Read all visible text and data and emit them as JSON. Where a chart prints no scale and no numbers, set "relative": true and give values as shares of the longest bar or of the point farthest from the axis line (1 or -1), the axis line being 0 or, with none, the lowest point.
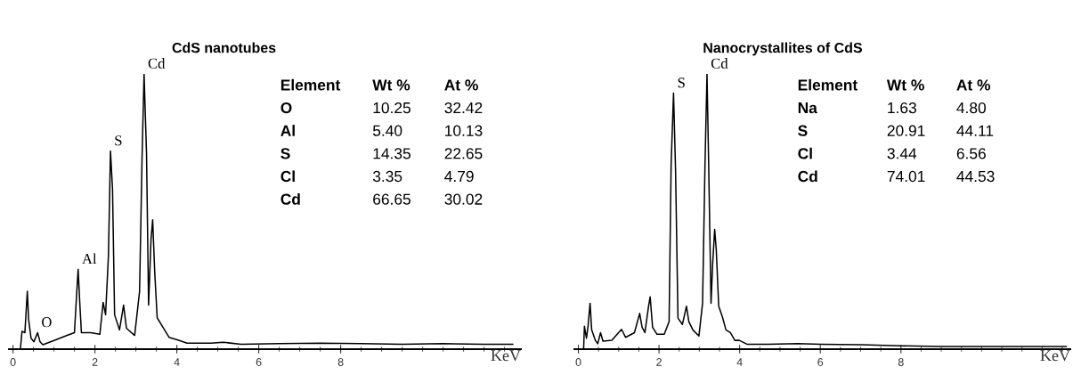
{
  "chart_data": [
    {
      "type": "line",
      "title": "CdS nanotubes",
      "xlabel": "KeV",
      "relative": true,
      "xlim": [
        -0.1,
        12.4
      ],
      "xticks": [
        0,
        2,
        4,
        6,
        8
      ],
      "grid": false,
      "legend": false,
      "series": [
        {
          "color": "#000000",
          "x": [
            0.18,
            0.22,
            0.29,
            0.35,
            0.38,
            0.44,
            0.51,
            0.6,
            0.66,
            0.73,
            1.03,
            1.32,
            1.5,
            1.55,
            1.59,
            1.63,
            1.67,
            1.9,
            2.12,
            2.2,
            2.26,
            2.33,
            2.38,
            2.43,
            2.48,
            2.6,
            2.7,
            2.77,
            2.97,
            3.09,
            3.15,
            3.2,
            3.26,
            3.31,
            3.37,
            3.41,
            3.46,
            3.52,
            3.66,
            3.81,
            4.03,
            4.25,
            4.84,
            5.13,
            5.57,
            6.5,
            7.5,
            8.5,
            9.5,
            10.5,
            11.5,
            12.2
          ],
          "values": [
            0,
            0.065,
            0.06,
            0.21,
            0.11,
            0.04,
            0.027,
            0.06,
            0.027,
            0.016,
            0.033,
            0.05,
            0.06,
            0.19,
            0.29,
            0.17,
            0.06,
            0.06,
            0.054,
            0.17,
            0.125,
            0.34,
            0.72,
            0.58,
            0.125,
            0.07,
            0.16,
            0.076,
            0.05,
            0.21,
            0.69,
            1.0,
            0.71,
            0.16,
            0.4,
            0.47,
            0.28,
            0.114,
            0.08,
            0.043,
            0.033,
            0.022,
            0.022,
            0.025,
            0.018,
            0.02,
            0.022,
            0.02,
            0.018,
            0.02,
            0.018,
            0.018
          ]
        }
      ],
      "annotations": [
        {
          "text": "O",
          "x": 0.6,
          "y": 0.06
        },
        {
          "text": "Al",
          "x": 1.59,
          "y": 0.29
        },
        {
          "text": "S",
          "x": 2.38,
          "y": 0.72
        },
        {
          "text": "Cd",
          "x": 3.2,
          "y": 1.0
        },
        "Element",
        "Wt %",
        "At %",
        "O",
        "10.25",
        "32.42",
        "Al",
        "5.40",
        "10.13",
        "S",
        "14.35",
        "22.65",
        "Cl",
        "3.35",
        "4.79",
        "Cd",
        "66.65",
        "30.02"
      ]
    },
    {
      "type": "line",
      "title": "Nanocrystallites of CdS",
      "xlabel": "KeV",
      "relative": true,
      "xlim": [
        -0.1,
        12.2
      ],
      "xticks": [
        0,
        2,
        4,
        6,
        8
      ],
      "grid": false,
      "legend": false,
      "series": [
        {
          "color": "#000000",
          "x": [
            0.13,
            0.15,
            0.2,
            0.24,
            0.29,
            0.33,
            0.42,
            0.48,
            0.55,
            0.61,
            0.83,
            1.07,
            1.17,
            1.39,
            1.52,
            1.58,
            1.65,
            1.74,
            1.78,
            1.84,
            1.95,
            2.13,
            2.25,
            2.3,
            2.36,
            2.41,
            2.47,
            2.58,
            2.68,
            2.74,
            2.84,
            2.99,
            3.08,
            3.14,
            3.19,
            3.23,
            3.29,
            3.33,
            3.38,
            3.42,
            3.48,
            3.57,
            3.66,
            3.77,
            3.88,
            3.99,
            4.18,
            4.7,
            5.44,
            6,
            7,
            8,
            9,
            10,
            11,
            12.1
          ],
          "values": [
            0,
            0.083,
            0.04,
            0.083,
            0.167,
            0.07,
            0.032,
            0.02,
            0.06,
            0.029,
            0.032,
            0.072,
            0.043,
            0.06,
            0.13,
            0.08,
            0.06,
            0.156,
            0.19,
            0.08,
            0.054,
            0.054,
            0.1,
            0.67,
            0.93,
            0.65,
            0.113,
            0.09,
            0.156,
            0.1,
            0.07,
            0.048,
            0.167,
            0.67,
            1.0,
            0.68,
            0.167,
            0.31,
            0.435,
            0.36,
            0.156,
            0.118,
            0.07,
            0.06,
            0.032,
            0.032,
            0.018,
            0.018,
            0.02,
            0.018,
            0.016,
            0.012,
            0.01,
            0.01,
            0.01,
            0.01
          ]
        }
      ],
      "annotations": [
        {
          "text": "S",
          "x": 2.36,
          "y": 0.93
        },
        {
          "text": "Cd",
          "x": 3.19,
          "y": 1.0
        },
        "Element",
        "Wt %",
        "At %",
        "Na",
        "1.63",
        "4.80",
        "S",
        "20.91",
        "44.11",
        "Cl",
        "3.44",
        "6.56",
        "Cd",
        "74.01",
        "44.53"
      ]
    }
  ]
}
